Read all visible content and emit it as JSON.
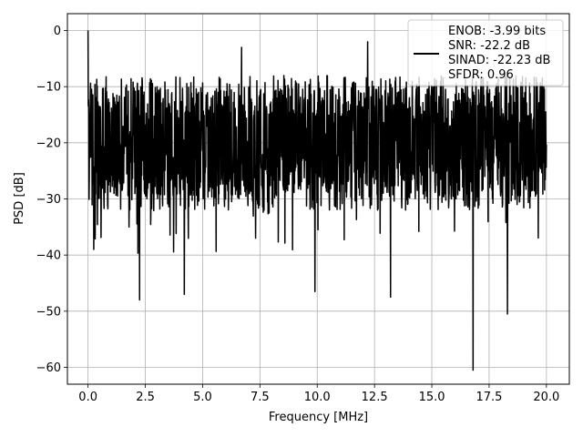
{
  "chart_data": {
    "type": "line",
    "title": "",
    "xlabel": "Frequency [MHz]",
    "ylabel": "PSD [dB]",
    "xlim": [
      -0.9,
      21.0
    ],
    "ylim": [
      -63.0,
      3.0
    ],
    "xticks": [
      0.0,
      2.5,
      5.0,
      7.5,
      10.0,
      12.5,
      15.0,
      17.5,
      20.0
    ],
    "xtick_labels": [
      "0.0",
      "2.5",
      "5.0",
      "7.5",
      "10.0",
      "12.5",
      "15.0",
      "17.5",
      "20.0"
    ],
    "yticks": [
      0,
      -10,
      -20,
      -30,
      -40,
      -50,
      -60
    ],
    "ytick_labels": [
      "0",
      "−10",
      "−20",
      "−30",
      "−40",
      "−50",
      "−60"
    ],
    "grid": true,
    "legend_position": "upper-right",
    "legend_entries": [
      "ENOB: -3.99 bits",
      "SNR: -22.2 dB",
      "SINAD: -22.23 dB",
      "SFDR: 0.96"
    ],
    "series_color": "#000000",
    "noise_floor_db": [
      -32,
      -8
    ],
    "noise_center_db": -20,
    "notable_points": [
      {
        "x": 0.0,
        "y": 0.0
      },
      {
        "x": 0.25,
        "y": -39.0
      },
      {
        "x": 2.25,
        "y": -48.0
      },
      {
        "x": 4.2,
        "y": -47.0
      },
      {
        "x": 9.9,
        "y": -46.5
      },
      {
        "x": 13.2,
        "y": -47.5
      },
      {
        "x": 16.8,
        "y": -60.5
      },
      {
        "x": 18.3,
        "y": -50.5
      },
      {
        "x": 6.7,
        "y": -3.0
      },
      {
        "x": 12.2,
        "y": -2.0
      }
    ]
  }
}
